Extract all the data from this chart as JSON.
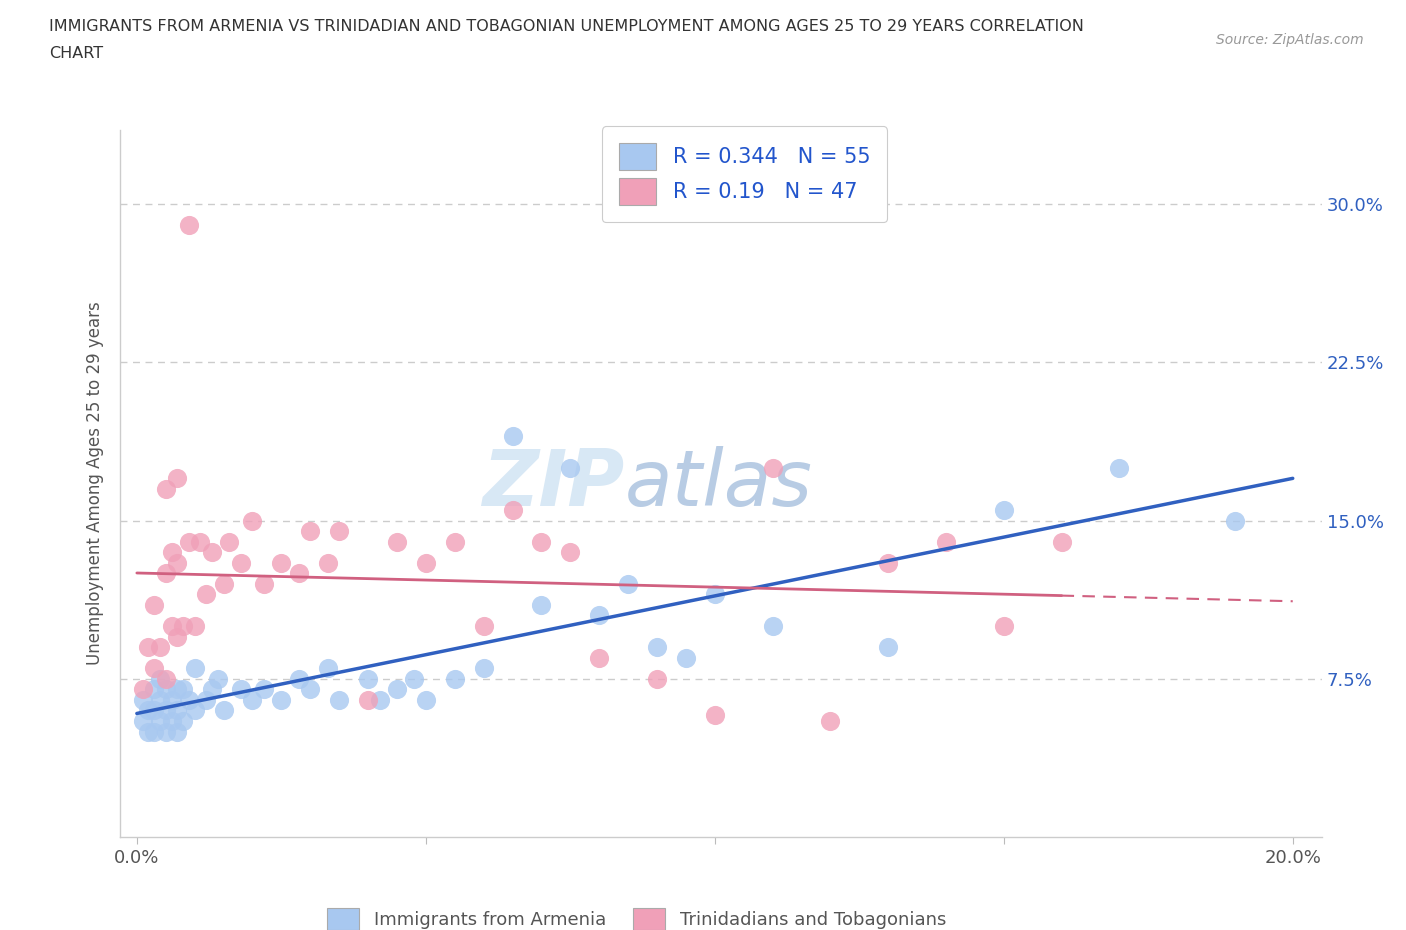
{
  "title_line1": "IMMIGRANTS FROM ARMENIA VS TRINIDADIAN AND TOBAGONIAN UNEMPLOYMENT AMONG AGES 25 TO 29 YEARS CORRELATION",
  "title_line2": "CHART",
  "source": "Source: ZipAtlas.com",
  "ylabel": "Unemployment Among Ages 25 to 29 years",
  "xlim": [
    -0.003,
    0.205
  ],
  "ylim": [
    0.0,
    0.335
  ],
  "xticks": [
    0.0,
    0.05,
    0.1,
    0.15,
    0.2
  ],
  "xtick_labels": [
    "0.0%",
    "",
    "",
    "",
    "20.0%"
  ],
  "yticks": [
    0.0,
    0.075,
    0.15,
    0.225,
    0.3
  ],
  "ytick_labels_right": [
    "",
    "7.5%",
    "15.0%",
    "22.5%",
    "30.0%"
  ],
  "r_armenia": 0.344,
  "n_armenia": 55,
  "r_trinidad": 0.19,
  "n_trinidad": 47,
  "color_armenia": "#a8c8f0",
  "color_trinidad": "#f0a0b8",
  "line_color_armenia": "#3060c0",
  "line_color_trinidad": "#d06080",
  "watermark_color": "#ddeeff",
  "grid_color": "#cccccc",
  "text_color": "#555555",
  "title_color": "#333333",
  "armenia_x": [
    0.001,
    0.001,
    0.002,
    0.002,
    0.003,
    0.003,
    0.003,
    0.004,
    0.004,
    0.004,
    0.005,
    0.005,
    0.005,
    0.006,
    0.006,
    0.007,
    0.007,
    0.007,
    0.008,
    0.008,
    0.009,
    0.01,
    0.01,
    0.012,
    0.013,
    0.014,
    0.015,
    0.018,
    0.02,
    0.022,
    0.025,
    0.028,
    0.03,
    0.033,
    0.035,
    0.04,
    0.042,
    0.045,
    0.048,
    0.05,
    0.055,
    0.06,
    0.065,
    0.07,
    0.075,
    0.08,
    0.085,
    0.09,
    0.095,
    0.1,
    0.11,
    0.13,
    0.15,
    0.17,
    0.19
  ],
  "armenia_y": [
    0.055,
    0.065,
    0.05,
    0.06,
    0.05,
    0.06,
    0.07,
    0.055,
    0.065,
    0.075,
    0.05,
    0.06,
    0.07,
    0.055,
    0.065,
    0.05,
    0.06,
    0.07,
    0.055,
    0.07,
    0.065,
    0.06,
    0.08,
    0.065,
    0.07,
    0.075,
    0.06,
    0.07,
    0.065,
    0.07,
    0.065,
    0.075,
    0.07,
    0.08,
    0.065,
    0.075,
    0.065,
    0.07,
    0.075,
    0.065,
    0.075,
    0.08,
    0.19,
    0.11,
    0.175,
    0.105,
    0.12,
    0.09,
    0.085,
    0.115,
    0.1,
    0.09,
    0.155,
    0.175,
    0.15
  ],
  "trinidad_x": [
    0.001,
    0.002,
    0.003,
    0.003,
    0.004,
    0.005,
    0.005,
    0.006,
    0.006,
    0.007,
    0.007,
    0.008,
    0.009,
    0.01,
    0.011,
    0.012,
    0.013,
    0.015,
    0.016,
    0.018,
    0.02,
    0.022,
    0.025,
    0.028,
    0.03,
    0.033,
    0.035,
    0.04,
    0.045,
    0.05,
    0.055,
    0.06,
    0.065,
    0.07,
    0.075,
    0.08,
    0.09,
    0.1,
    0.11,
    0.12,
    0.13,
    0.14,
    0.15,
    0.16,
    0.005,
    0.007,
    0.009
  ],
  "trinidad_y": [
    0.07,
    0.09,
    0.08,
    0.11,
    0.09,
    0.075,
    0.125,
    0.1,
    0.135,
    0.095,
    0.13,
    0.1,
    0.14,
    0.1,
    0.14,
    0.115,
    0.135,
    0.12,
    0.14,
    0.13,
    0.15,
    0.12,
    0.13,
    0.125,
    0.145,
    0.13,
    0.145,
    0.065,
    0.14,
    0.13,
    0.14,
    0.1,
    0.155,
    0.14,
    0.135,
    0.085,
    0.075,
    0.058,
    0.175,
    0.055,
    0.13,
    0.14,
    0.1,
    0.14,
    0.165,
    0.17,
    0.29
  ]
}
